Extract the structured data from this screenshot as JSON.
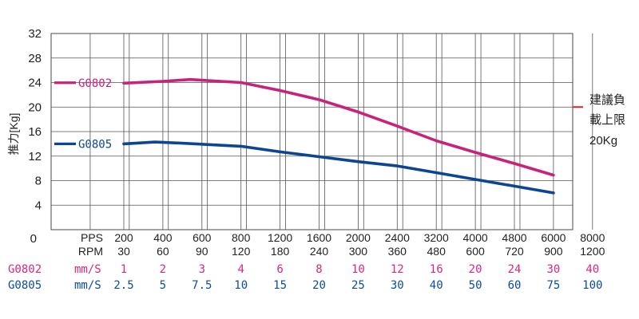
{
  "chart_data": {
    "type": "line",
    "ylabel": "推力[Kg]",
    "ylim": [
      0,
      32
    ],
    "yticks": [
      "32",
      "28",
      "24",
      "20",
      "16",
      "12",
      "8",
      "4",
      "0"
    ],
    "x_tick_positions": [
      0,
      1,
      2,
      3,
      4,
      5,
      6,
      7,
      8,
      9,
      10,
      11,
      12
    ],
    "rows": [
      {
        "label": "PPS",
        "values": [
          "200",
          "400",
          "600",
          "800",
          "1200",
          "1600",
          "2000",
          "2400",
          "3200",
          "4000",
          "4800",
          "6000",
          "8000"
        ]
      },
      {
        "label": "RPM",
        "values": [
          "30",
          "60",
          "90",
          "120",
          "180",
          "240",
          "300",
          "360",
          "480",
          "600",
          "720",
          "900",
          "1200"
        ]
      }
    ],
    "speed_rows": [
      {
        "model": "G0802",
        "unit": "mm/S",
        "color": "#d6287e",
        "values": [
          "1",
          "2",
          "3",
          "4",
          "6",
          "8",
          "10",
          "12",
          "16",
          "20",
          "24",
          "30",
          "40"
        ]
      },
      {
        "model": "G0805",
        "unit": "mm/S",
        "color": "#0d4a9a",
        "values": [
          "2.5",
          "5",
          "7.5",
          "10",
          "15",
          "20",
          "25",
          "30",
          "40",
          "50",
          "60",
          "75",
          "100"
        ]
      }
    ],
    "series": [
      {
        "name": "G0802",
        "color": "#c8237a",
        "points": [
          [
            0,
            23.9
          ],
          [
            1,
            24.2
          ],
          [
            1.7,
            24.5
          ],
          [
            3,
            24
          ],
          [
            4,
            22.7
          ],
          [
            5,
            21.2
          ],
          [
            6,
            19.2
          ],
          [
            7,
            16.9
          ],
          [
            8,
            14.5
          ],
          [
            9,
            12.6
          ],
          [
            10,
            10.8
          ],
          [
            11,
            8.9
          ]
        ]
      },
      {
        "name": "G0805",
        "color": "#0d4592",
        "points": [
          [
            0,
            14
          ],
          [
            0.8,
            14.3
          ],
          [
            1.5,
            14.1
          ],
          [
            3,
            13.6
          ],
          [
            4,
            12.7
          ],
          [
            5,
            11.9
          ],
          [
            6,
            11.1
          ],
          [
            7,
            10.4
          ],
          [
            8,
            9.3
          ],
          [
            9,
            8.2
          ],
          [
            10,
            7.1
          ],
          [
            11,
            6.0
          ]
        ]
      }
    ],
    "legend_marker": {
      "label_line1": "建議負",
      "label_line2": "載上限",
      "label_line3": "20Kg",
      "value": 20,
      "color": "#e02020"
    }
  }
}
